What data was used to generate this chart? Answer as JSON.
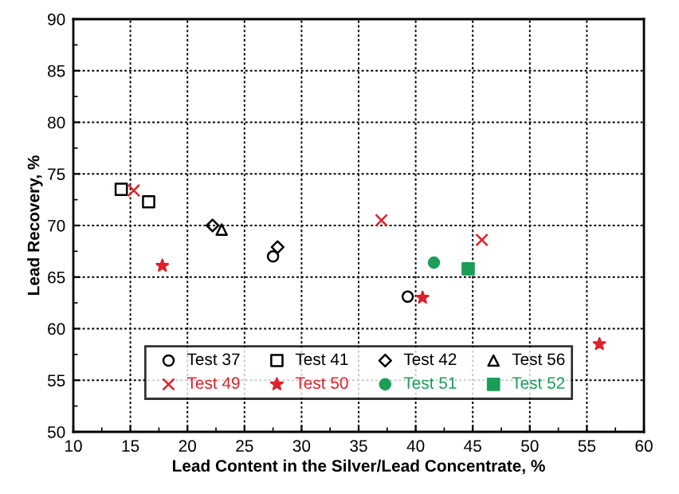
{
  "chart_data": {
    "type": "scatter",
    "xlabel": "Lead Content in the Silver/Lead Concentrate, %",
    "ylabel": "Lead Recovery, %",
    "xlim": [
      10,
      60
    ],
    "xticks": [
      10,
      15,
      20,
      25,
      30,
      35,
      40,
      45,
      50,
      55,
      60
    ],
    "ylim": [
      50,
      90
    ],
    "yticks": [
      50,
      55,
      60,
      65,
      70,
      75,
      80,
      85,
      90
    ],
    "grid": true,
    "legend": "bottom",
    "series": [
      {
        "name": "Test 37",
        "color": "#000000",
        "marker": "circle",
        "x": [
          27.5,
          39.3
        ],
        "values": [
          67.0,
          63.1
        ]
      },
      {
        "name": "Test 41",
        "color": "#000000",
        "marker": "square",
        "x": [
          14.2,
          16.6
        ],
        "values": [
          73.5,
          72.3
        ]
      },
      {
        "name": "Test 42",
        "color": "#000000",
        "marker": "diamond",
        "x": [
          22.2,
          27.9
        ],
        "values": [
          70.0,
          67.9
        ]
      },
      {
        "name": "Test 56",
        "color": "#000000",
        "marker": "triangle",
        "x": [
          23.0
        ],
        "values": [
          69.6
        ]
      },
      {
        "name": "Test 49",
        "color": "#e0202a",
        "marker": "cross",
        "x": [
          15.3,
          37.0,
          45.8
        ],
        "values": [
          73.4,
          70.5,
          68.6
        ]
      },
      {
        "name": "Test 50",
        "color": "#e0202a",
        "marker": "star",
        "x": [
          17.8,
          40.6,
          56.1
        ],
        "values": [
          66.1,
          63.0,
          58.5
        ]
      },
      {
        "name": "Test 51",
        "color": "#1a9e58",
        "marker": "circle",
        "x": [
          41.6
        ],
        "values": [
          66.4
        ]
      },
      {
        "name": "Test 52",
        "color": "#1a9e58",
        "marker": "square",
        "x": [
          44.6
        ],
        "values": [
          65.8
        ]
      }
    ]
  }
}
